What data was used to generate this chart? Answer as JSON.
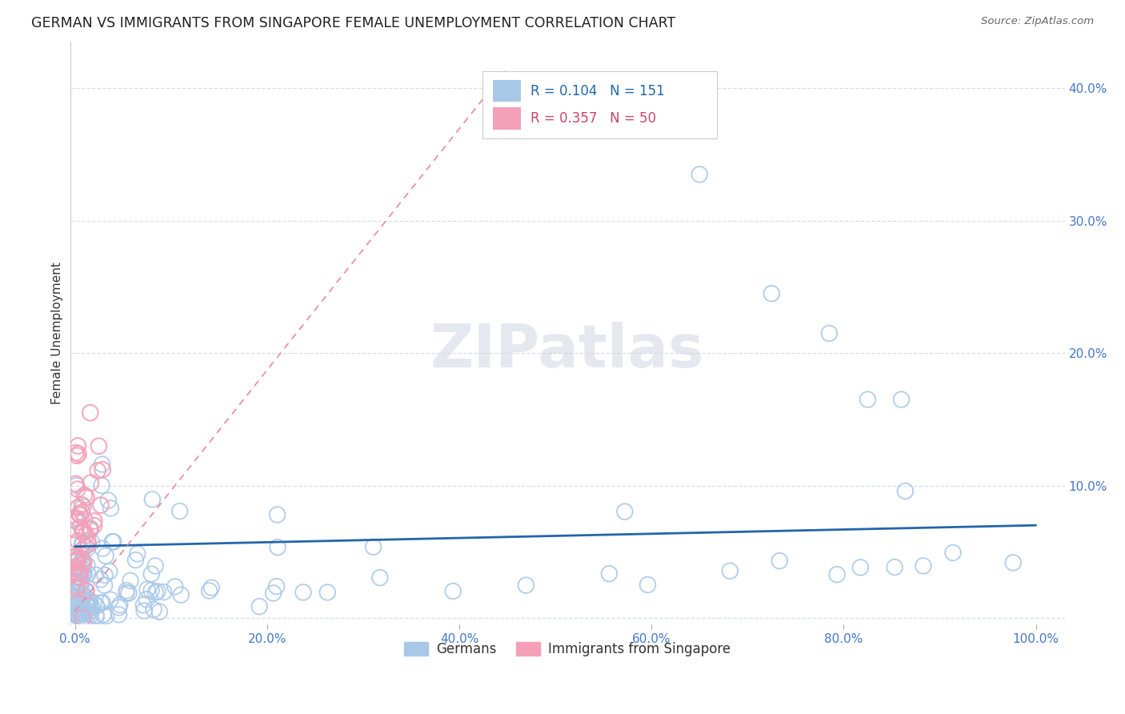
{
  "title": "GERMAN VS IMMIGRANTS FROM SINGAPORE FEMALE UNEMPLOYMENT CORRELATION CHART",
  "source": "Source: ZipAtlas.com",
  "ylabel_label": "Female Unemployment",
  "series1_color": "#a8c8e8",
  "series2_color": "#f4a0b8",
  "series1_line_color": "#2266aa",
  "series2_line_color": "#e888a0",
  "grid_color": "#d8dde8",
  "background": "#ffffff",
  "R1": 0.104,
  "N1": 151,
  "R2": 0.357,
  "N2": 50
}
